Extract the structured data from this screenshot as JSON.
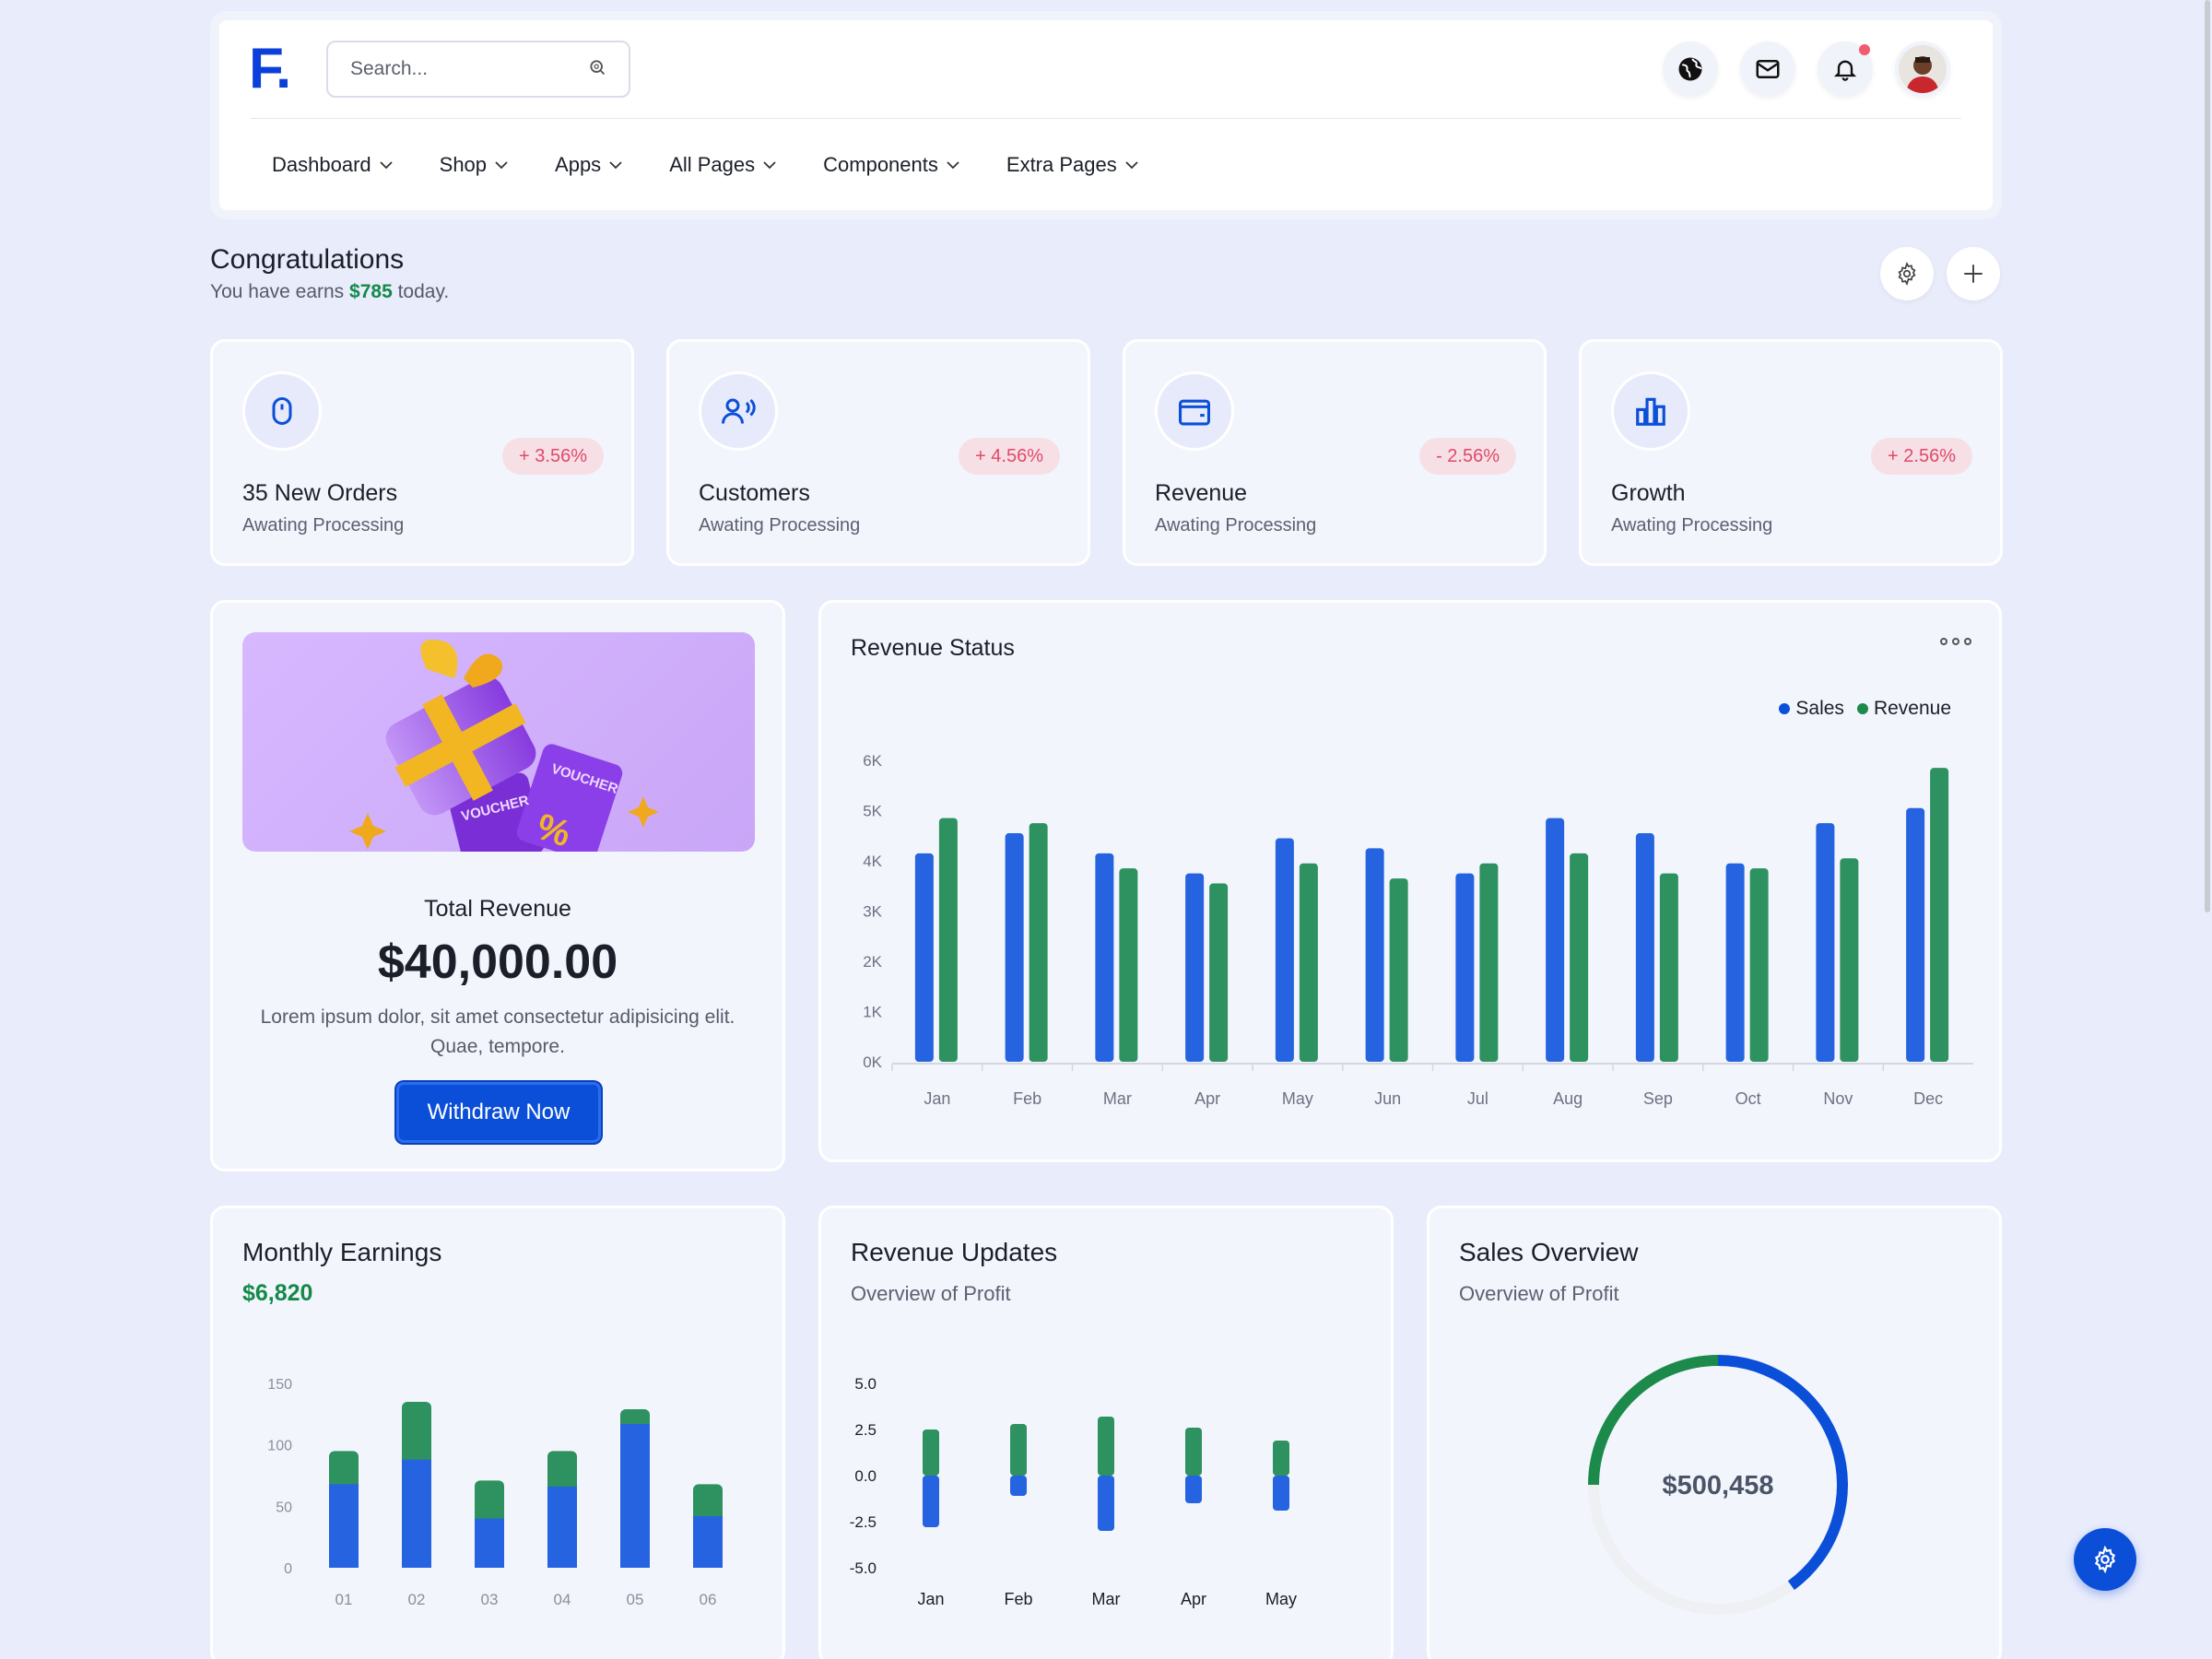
{
  "header": {
    "logo": "F.",
    "search_placeholder": "Search...",
    "icons": [
      "globe-icon",
      "mail-icon",
      "bell-icon",
      "avatar"
    ],
    "nav": [
      "Dashboard",
      "Shop",
      "Apps",
      "All Pages",
      "Components",
      "Extra Pages"
    ]
  },
  "congrats": {
    "title": "Congratulations",
    "sub_prefix": "You have earns",
    "amount": "$785",
    "sub_suffix": "today."
  },
  "stats": [
    {
      "title": "35 New Orders",
      "sub": "Awating Processing",
      "badge": "+ 3.56%",
      "icon": "mouse-icon"
    },
    {
      "title": "Customers",
      "sub": "Awating Processing",
      "badge": "+ 4.56%",
      "icon": "users-icon"
    },
    {
      "title": "Revenue",
      "sub": "Awating Processing",
      "badge": "- 2.56%",
      "icon": "wallet-icon"
    },
    {
      "title": "Growth",
      "sub": "Awating Processing",
      "badge": "+ 2.56%",
      "icon": "bar-chart-icon"
    }
  ],
  "total_revenue": {
    "label": "Total Revenue",
    "amount": "$40,000.00",
    "description": "Lorem ipsum dolor, sit amet consectetur adipisicing elit. Quae, tempore.",
    "button": "Withdraw Now",
    "voucher_text": "VOUCHER"
  },
  "revenue_status": {
    "title": "Revenue Status",
    "legend": [
      "Sales",
      "Revenue"
    ]
  },
  "monthly_earnings": {
    "title": "Monthly Earnings",
    "amount": "$6,820"
  },
  "revenue_updates": {
    "title": "Revenue Updates",
    "sub": "Overview of Profit"
  },
  "sales_overview": {
    "title": "Sales Overview",
    "sub": "Overview of Profit",
    "center": "$500,458"
  },
  "colors": {
    "blue": "#2563e0",
    "green": "#2e9160",
    "accent": "#0b4fd9"
  },
  "chart_data": [
    {
      "type": "bar",
      "title": "Revenue Status",
      "categories": [
        "Jan",
        "Feb",
        "Mar",
        "Apr",
        "May",
        "Jun",
        "Jul",
        "Aug",
        "Sep",
        "Oct",
        "Nov",
        "Dec"
      ],
      "series": [
        {
          "name": "Sales",
          "values": [
            4150,
            4550,
            4150,
            3750,
            4450,
            4250,
            3750,
            4850,
            4550,
            3950,
            4750,
            5050
          ]
        },
        {
          "name": "Revenue",
          "values": [
            4850,
            4750,
            3850,
            3550,
            3950,
            3650,
            3950,
            4150,
            3750,
            3850,
            4050,
            5850
          ]
        }
      ],
      "yticks": [
        "0K",
        "1K",
        "2K",
        "3K",
        "4K",
        "5K",
        "6K"
      ],
      "ylim": [
        0,
        6000
      ],
      "legend": "top-right"
    },
    {
      "type": "bar",
      "stacked": true,
      "title": "Monthly Earnings",
      "categories": [
        "01",
        "02",
        "03",
        "04",
        "05",
        "06"
      ],
      "series": [
        {
          "values": [
            68,
            88,
            40,
            66,
            117,
            42
          ]
        },
        {
          "values": [
            27,
            47,
            31,
            29,
            12,
            26
          ]
        }
      ],
      "yticks": [
        "0",
        "50",
        "100",
        "150"
      ],
      "ylim": [
        0,
        150
      ]
    },
    {
      "type": "bar",
      "stacked": true,
      "title": "Revenue Updates",
      "categories": [
        "Jan",
        "Feb",
        "Mar",
        "Apr",
        "May"
      ],
      "series": [
        {
          "values": [
            -2.8,
            -1.1,
            -3.0,
            -1.5,
            -1.9
          ]
        },
        {
          "values": [
            2.5,
            2.8,
            3.2,
            2.6,
            1.9
          ]
        }
      ],
      "yticks": [
        "5.0",
        "2.5",
        "0.0",
        "-2.5",
        "-5.0"
      ],
      "ylim": [
        -5,
        5
      ]
    },
    {
      "type": "pie",
      "title": "Sales Overview",
      "center_label": "$500,458",
      "segments": [
        {
          "color": "#0b4fd9",
          "value": 40
        },
        {
          "color": "#eef0f3",
          "value": 35
        },
        {
          "color": "#1c8a4a",
          "value": 25
        }
      ]
    }
  ]
}
